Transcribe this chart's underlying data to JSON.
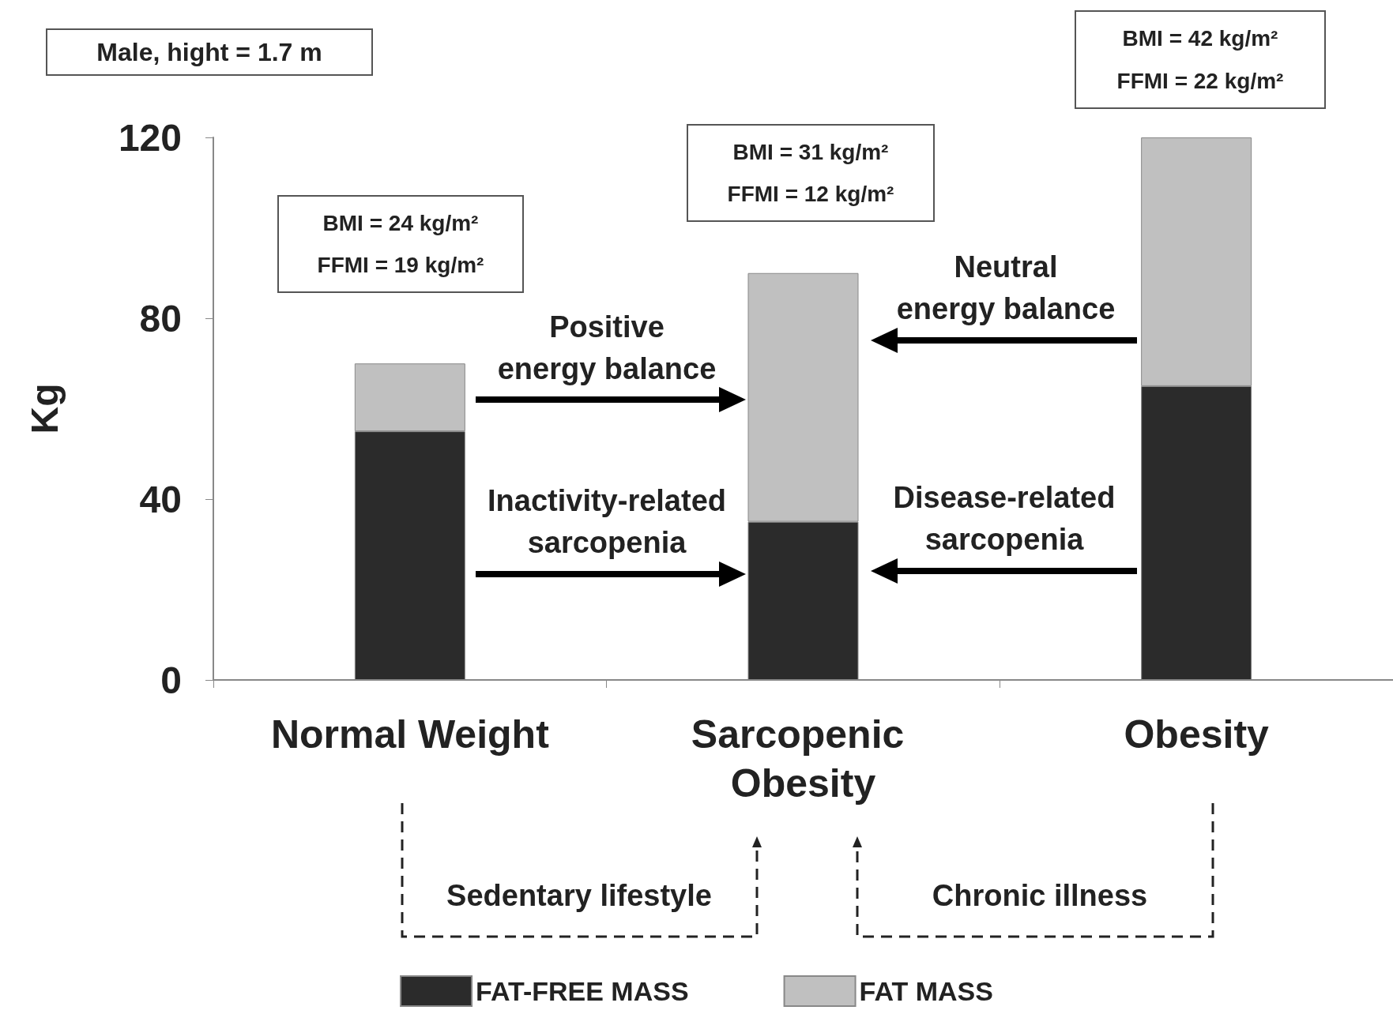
{
  "chart_data": {
    "type": "bar",
    "stacked": true,
    "ylabel": "Kg",
    "categories": [
      "Normal Weight",
      "Sarcopenic Obesity",
      "Obesity"
    ],
    "series": [
      {
        "name": "FAT-FREE MASS",
        "color": "#2b2b2b",
        "values": [
          55,
          35,
          65
        ]
      },
      {
        "name": "FAT MASS",
        "color": "#c0c0c0",
        "values": [
          15,
          55,
          55
        ]
      }
    ],
    "ylim": [
      0,
      120
    ],
    "yticks": [
      0,
      40,
      80,
      120
    ],
    "grid": false,
    "legend": "bottom",
    "annotations": [
      "Male, hight = 1.7 m",
      "BMI = 24 kg/m²",
      "FFMI = 19 kg/m²",
      "BMI = 31 kg/m²",
      "FFMI = 12 kg/m²",
      "BMI = 42 kg/m²",
      "FFMI = 22 kg/m²",
      "Positive\nenergy balance",
      "Inactivity-related\nsarcopenia",
      "Neutral\nenergy balance",
      "Disease-related\nsarcopenia",
      "Sedentary lifestyle",
      "Chronic illness"
    ]
  }
}
